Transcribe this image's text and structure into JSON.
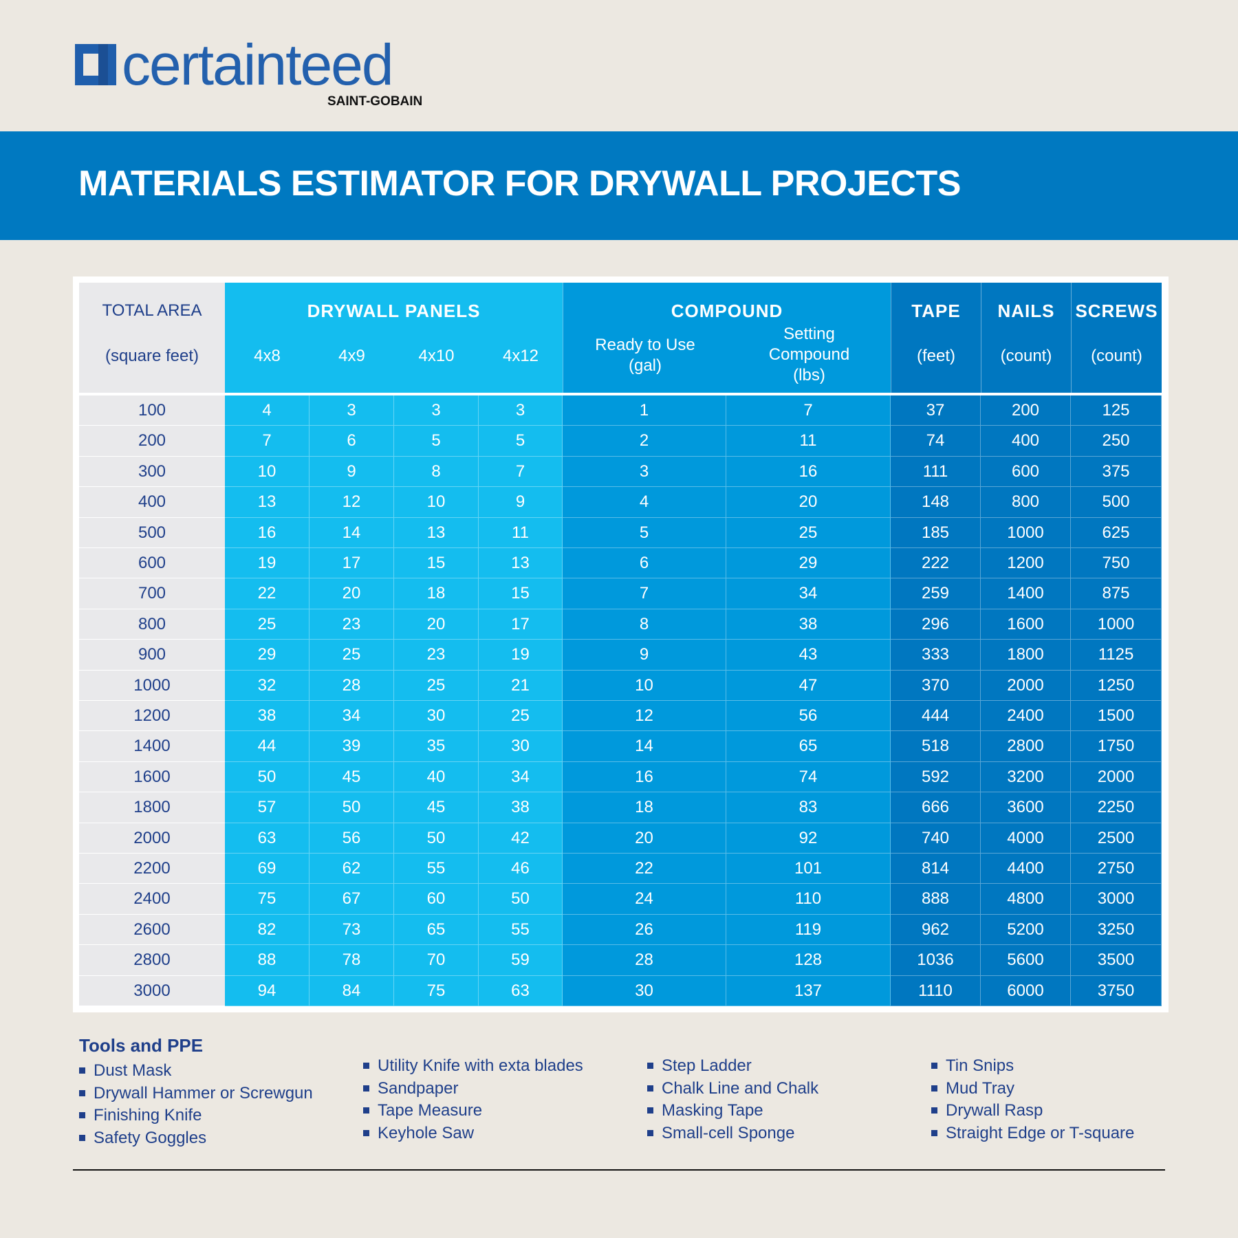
{
  "logo": {
    "name": "certainteed",
    "sub": "SAINT-GOBAIN"
  },
  "title": "MATERIALS ESTIMATOR FOR DRYWALL PROJECTS",
  "colors": {
    "banner": "#0079c1",
    "panels": "#14bdef",
    "compound": "#0099dc",
    "other": "#0077c0",
    "area": "#e9e9eb",
    "text": "#1f3f8a"
  },
  "headers": {
    "area": {
      "title": "TOTAL AREA",
      "unit": "(square feet)"
    },
    "panels": {
      "title": "DRYWALL PANELS",
      "cols": [
        "4x8",
        "4x9",
        "4x10",
        "4x12"
      ]
    },
    "compound": {
      "title": "COMPOUND",
      "rtu": "Ready to Use\n(gal)",
      "setting": "Setting\nCompound\n(lbs)"
    },
    "tape": {
      "title": "TAPE",
      "unit": "(feet)"
    },
    "nails": {
      "title": "NAILS",
      "unit": "(count)"
    },
    "screws": {
      "title": "SCREWS",
      "unit": "(count)"
    }
  },
  "rows": [
    [
      "100",
      "4",
      "3",
      "3",
      "3",
      "1",
      "7",
      "37",
      "200",
      "125"
    ],
    [
      "200",
      "7",
      "6",
      "5",
      "5",
      "2",
      "11",
      "74",
      "400",
      "250"
    ],
    [
      "300",
      "10",
      "9",
      "8",
      "7",
      "3",
      "16",
      "111",
      "600",
      "375"
    ],
    [
      "400",
      "13",
      "12",
      "10",
      "9",
      "4",
      "20",
      "148",
      "800",
      "500"
    ],
    [
      "500",
      "16",
      "14",
      "13",
      "11",
      "5",
      "25",
      "185",
      "1000",
      "625"
    ],
    [
      "600",
      "19",
      "17",
      "15",
      "13",
      "6",
      "29",
      "222",
      "1200",
      "750"
    ],
    [
      "700",
      "22",
      "20",
      "18",
      "15",
      "7",
      "34",
      "259",
      "1400",
      "875"
    ],
    [
      "800",
      "25",
      "23",
      "20",
      "17",
      "8",
      "38",
      "296",
      "1600",
      "1000"
    ],
    [
      "900",
      "29",
      "25",
      "23",
      "19",
      "9",
      "43",
      "333",
      "1800",
      "1125"
    ],
    [
      "1000",
      "32",
      "28",
      "25",
      "21",
      "10",
      "47",
      "370",
      "2000",
      "1250"
    ],
    [
      "1200",
      "38",
      "34",
      "30",
      "25",
      "12",
      "56",
      "444",
      "2400",
      "1500"
    ],
    [
      "1400",
      "44",
      "39",
      "35",
      "30",
      "14",
      "65",
      "518",
      "2800",
      "1750"
    ],
    [
      "1600",
      "50",
      "45",
      "40",
      "34",
      "16",
      "74",
      "592",
      "3200",
      "2000"
    ],
    [
      "1800",
      "57",
      "50",
      "45",
      "38",
      "18",
      "83",
      "666",
      "3600",
      "2250"
    ],
    [
      "2000",
      "63",
      "56",
      "50",
      "42",
      "20",
      "92",
      "740",
      "4000",
      "2500"
    ],
    [
      "2200",
      "69",
      "62",
      "55",
      "46",
      "22",
      "101",
      "814",
      "4400",
      "2750"
    ],
    [
      "2400",
      "75",
      "67",
      "60",
      "50",
      "24",
      "110",
      "888",
      "4800",
      "3000"
    ],
    [
      "2600",
      "82",
      "73",
      "65",
      "55",
      "26",
      "119",
      "962",
      "5200",
      "3250"
    ],
    [
      "2800",
      "88",
      "78",
      "70",
      "59",
      "28",
      "128",
      "1036",
      "5600",
      "3500"
    ],
    [
      "3000",
      "94",
      "84",
      "75",
      "63",
      "30",
      "137",
      "1110",
      "6000",
      "3750"
    ]
  ],
  "tools": {
    "title": "Tools and PPE",
    "columns": [
      [
        "Dust Mask",
        "Drywall Hammer or Screwgun",
        "Finishing Knife",
        "Safety Goggles"
      ],
      [
        "Utility Knife with exta blades",
        "Sandpaper",
        "Tape Measure",
        "Keyhole Saw"
      ],
      [
        "Step Ladder",
        "Chalk Line and Chalk",
        "Masking Tape",
        "Small-cell Sponge"
      ],
      [
        "Tin Snips",
        "Mud Tray",
        "Drywall Rasp",
        "Straight Edge or T-square"
      ]
    ]
  }
}
